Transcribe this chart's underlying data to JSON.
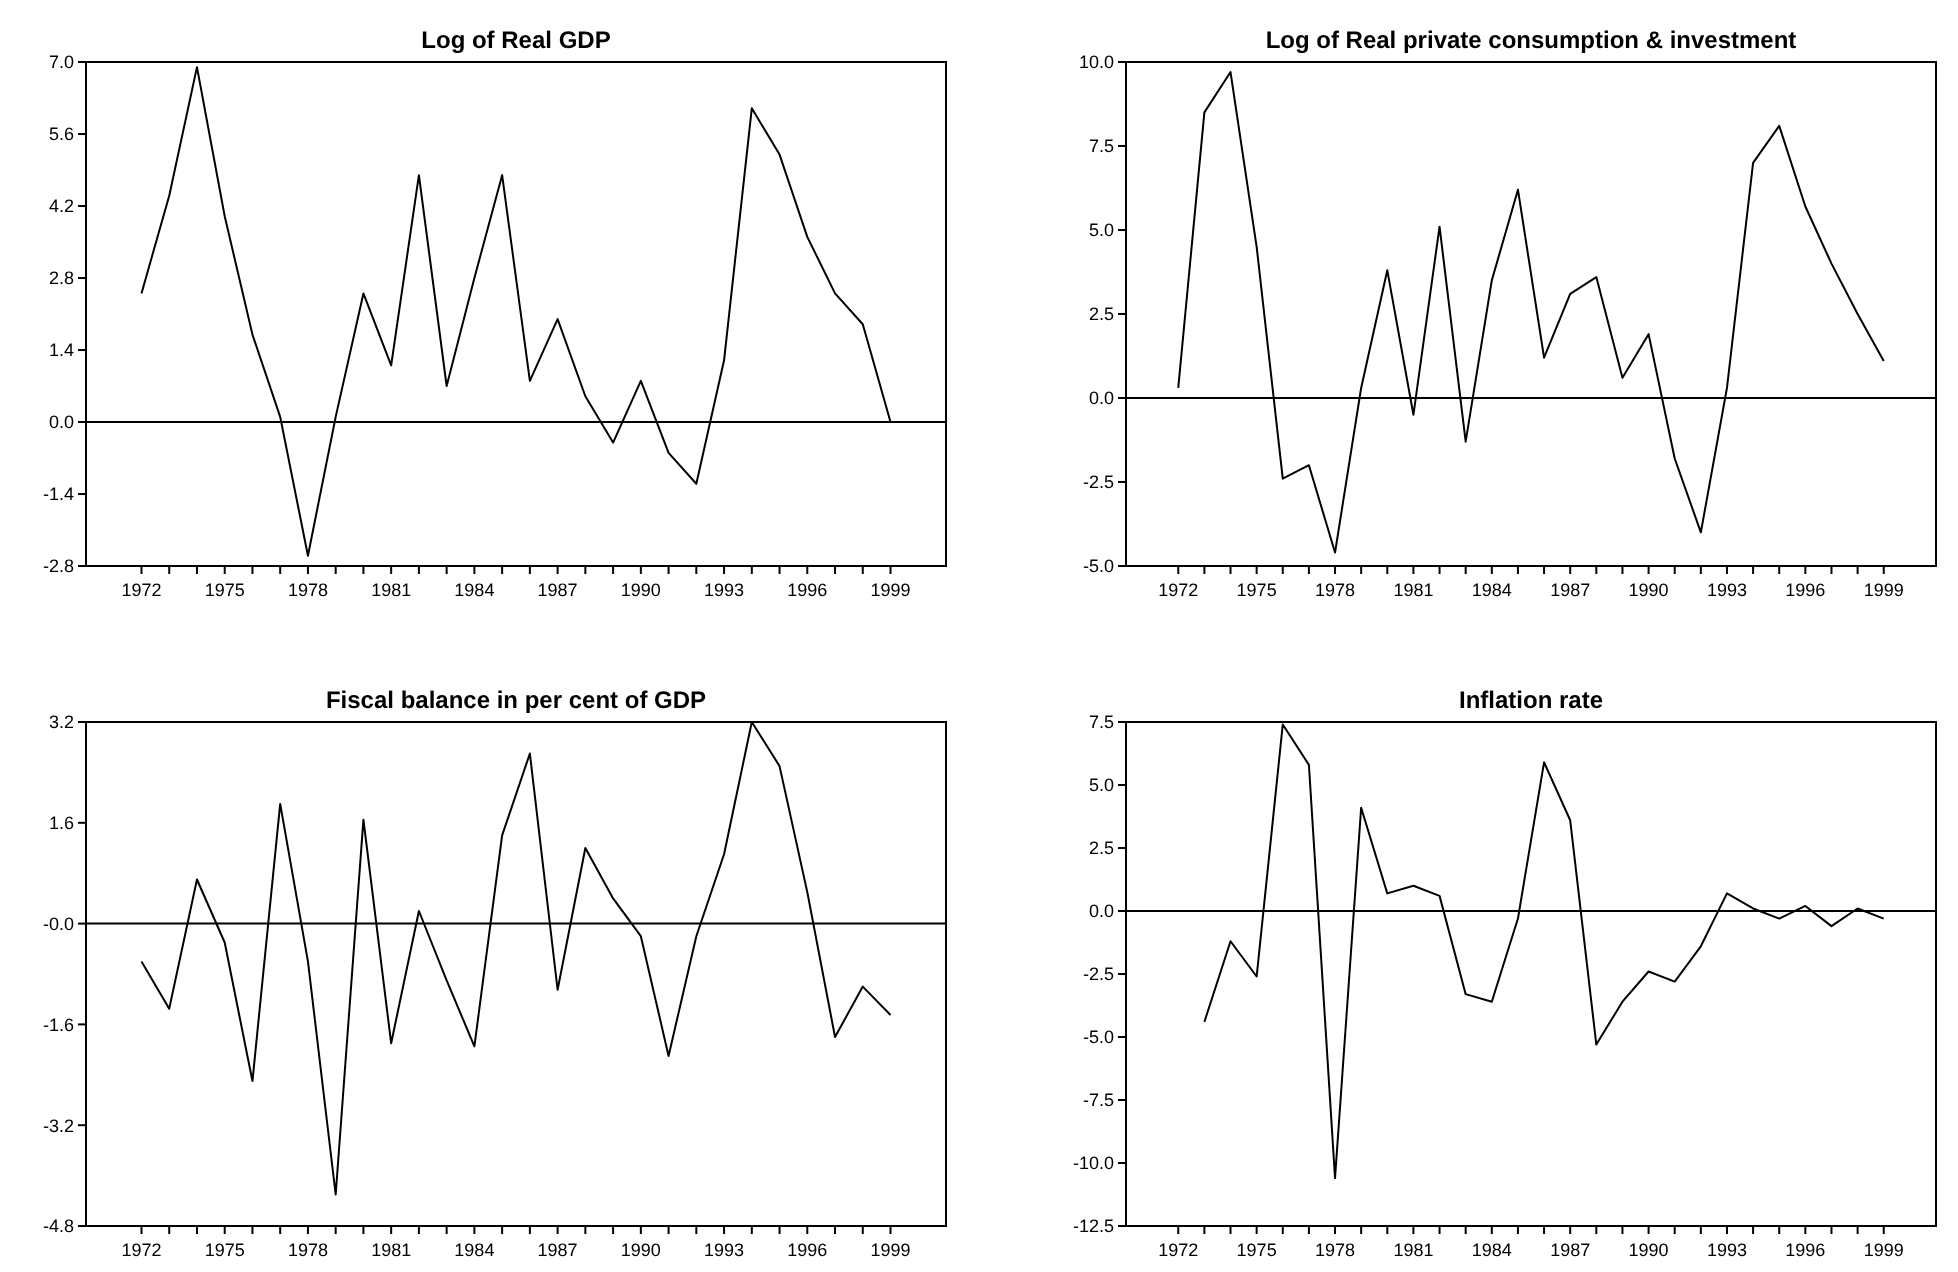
{
  "chart_data": [
    {
      "type": "line",
      "title": "Log of Real GDP",
      "x": [
        1972,
        1973,
        1974,
        1975,
        1976,
        1977,
        1978,
        1979,
        1980,
        1981,
        1982,
        1983,
        1984,
        1985,
        1986,
        1987,
        1988,
        1989,
        1990,
        1991,
        1992,
        1993,
        1994,
        1995,
        1996,
        1997,
        1998,
        1999
      ],
      "values": [
        2.5,
        4.4,
        6.9,
        4.0,
        1.7,
        0.1,
        -2.6,
        0.1,
        2.5,
        1.1,
        4.8,
        0.7,
        2.8,
        4.8,
        0.8,
        2.0,
        0.5,
        -0.4,
        0.8,
        -0.6,
        -1.2,
        1.2,
        6.1,
        5.2,
        3.6,
        2.5,
        1.9,
        0.0
      ],
      "color": "#000000",
      "xlim": [
        1970,
        2001
      ],
      "xticks": [
        {
          "value": 1972,
          "label": "1972"
        },
        {
          "value": 1973,
          "label": null
        },
        {
          "value": 1974,
          "label": null
        },
        {
          "value": 1975,
          "label": "1975"
        },
        {
          "value": 1976,
          "label": null
        },
        {
          "value": 1977,
          "label": null
        },
        {
          "value": 1978,
          "label": "1978"
        },
        {
          "value": 1979,
          "label": null
        },
        {
          "value": 1980,
          "label": null
        },
        {
          "value": 1981,
          "label": "1981"
        },
        {
          "value": 1982,
          "label": null
        },
        {
          "value": 1983,
          "label": null
        },
        {
          "value": 1984,
          "label": "1984"
        },
        {
          "value": 1985,
          "label": null
        },
        {
          "value": 1986,
          "label": null
        },
        {
          "value": 1987,
          "label": "1987"
        },
        {
          "value": 1988,
          "label": null
        },
        {
          "value": 1989,
          "label": null
        },
        {
          "value": 1990,
          "label": "1990"
        },
        {
          "value": 1991,
          "label": null
        },
        {
          "value": 1992,
          "label": null
        },
        {
          "value": 1993,
          "label": "1993"
        },
        {
          "value": 1994,
          "label": null
        },
        {
          "value": 1995,
          "label": null
        },
        {
          "value": 1996,
          "label": "1996"
        },
        {
          "value": 1997,
          "label": null
        },
        {
          "value": 1998,
          "label": null
        },
        {
          "value": 1999,
          "label": "1999"
        }
      ],
      "ylim": [
        -2.8,
        7.0
      ],
      "yticks": [
        {
          "value": -2.8,
          "label": "-2.8"
        },
        {
          "value": -1.4,
          "label": "-1.4"
        },
        {
          "value": 0,
          "label": "0.0"
        },
        {
          "value": 1.4,
          "label": "1.4"
        },
        {
          "value": 2.8,
          "label": "2.8"
        },
        {
          "value": 4.2,
          "label": "4.2"
        },
        {
          "value": 5.6,
          "label": "5.6"
        },
        {
          "value": 7.0,
          "label": "7.0"
        }
      ],
      "ref_lines": [
        {
          "axis": "y",
          "value": 0,
          "color": "#000000"
        }
      ]
    },
    {
      "type": "line",
      "title": "Log of Real private consumption & investment",
      "x": [
        1972,
        1973,
        1974,
        1975,
        1976,
        1977,
        1978,
        1979,
        1980,
        1981,
        1982,
        1983,
        1984,
        1985,
        1986,
        1987,
        1988,
        1989,
        1990,
        1991,
        1992,
        1993,
        1994,
        1995,
        1996,
        1997,
        1998,
        1999
      ],
      "values": [
        0.3,
        8.5,
        9.7,
        4.5,
        -2.4,
        -2.0,
        -4.6,
        0.3,
        3.8,
        -0.5,
        5.1,
        -1.3,
        3.5,
        6.2,
        1.2,
        3.1,
        3.6,
        0.6,
        1.9,
        -1.8,
        -4.0,
        0.3,
        7.0,
        8.1,
        5.7,
        4.0,
        2.5,
        1.1
      ],
      "color": "#000000",
      "xlim": [
        1970,
        2001
      ],
      "xticks": [
        {
          "value": 1972,
          "label": "1972"
        },
        {
          "value": 1973,
          "label": null
        },
        {
          "value": 1974,
          "label": null
        },
        {
          "value": 1975,
          "label": "1975"
        },
        {
          "value": 1976,
          "label": null
        },
        {
          "value": 1977,
          "label": null
        },
        {
          "value": 1978,
          "label": "1978"
        },
        {
          "value": 1979,
          "label": null
        },
        {
          "value": 1980,
          "label": null
        },
        {
          "value": 1981,
          "label": "1981"
        },
        {
          "value": 1982,
          "label": null
        },
        {
          "value": 1983,
          "label": null
        },
        {
          "value": 1984,
          "label": "1984"
        },
        {
          "value": 1985,
          "label": null
        },
        {
          "value": 1986,
          "label": null
        },
        {
          "value": 1987,
          "label": "1987"
        },
        {
          "value": 1988,
          "label": null
        },
        {
          "value": 1989,
          "label": null
        },
        {
          "value": 1990,
          "label": "1990"
        },
        {
          "value": 1991,
          "label": null
        },
        {
          "value": 1992,
          "label": null
        },
        {
          "value": 1993,
          "label": "1993"
        },
        {
          "value": 1994,
          "label": null
        },
        {
          "value": 1995,
          "label": null
        },
        {
          "value": 1996,
          "label": "1996"
        },
        {
          "value": 1997,
          "label": null
        },
        {
          "value": 1998,
          "label": null
        },
        {
          "value": 1999,
          "label": "1999"
        }
      ],
      "ylim": [
        -5.0,
        10.0
      ],
      "yticks": [
        {
          "value": -5,
          "label": "-5.0"
        },
        {
          "value": -2.5,
          "label": "-2.5"
        },
        {
          "value": 0,
          "label": "0.0"
        },
        {
          "value": 2.5,
          "label": "2.5"
        },
        {
          "value": 5,
          "label": "5.0"
        },
        {
          "value": 7.5,
          "label": "7.5"
        },
        {
          "value": 10,
          "label": "10.0"
        }
      ],
      "ref_lines": [
        {
          "axis": "y",
          "value": 0,
          "color": "#000000"
        }
      ]
    },
    {
      "type": "line",
      "title": "Fiscal balance in per cent of GDP",
      "x": [
        1972,
        1973,
        1974,
        1975,
        1976,
        1977,
        1978,
        1979,
        1980,
        1981,
        1982,
        1983,
        1984,
        1985,
        1986,
        1987,
        1988,
        1989,
        1990,
        1991,
        1992,
        1993,
        1994,
        1995,
        1996,
        1997,
        1998,
        1999
      ],
      "values": [
        -0.6,
        -1.35,
        0.7,
        -0.3,
        -2.5,
        1.9,
        -0.6,
        -4.3,
        1.65,
        -1.9,
        0.2,
        -0.9,
        -1.95,
        1.4,
        2.7,
        -1.05,
        1.2,
        0.4,
        -0.2,
        -2.1,
        -0.2,
        1.1,
        3.2,
        2.5,
        0.5,
        -1.8,
        -1.0,
        -1.45
      ],
      "color": "#000000",
      "xlim": [
        1970,
        2001
      ],
      "xticks": [
        {
          "value": 1972,
          "label": "1972"
        },
        {
          "value": 1973,
          "label": null
        },
        {
          "value": 1974,
          "label": null
        },
        {
          "value": 1975,
          "label": "1975"
        },
        {
          "value": 1976,
          "label": null
        },
        {
          "value": 1977,
          "label": null
        },
        {
          "value": 1978,
          "label": "1978"
        },
        {
          "value": 1979,
          "label": null
        },
        {
          "value": 1980,
          "label": null
        },
        {
          "value": 1981,
          "label": "1981"
        },
        {
          "value": 1982,
          "label": null
        },
        {
          "value": 1983,
          "label": null
        },
        {
          "value": 1984,
          "label": "1984"
        },
        {
          "value": 1985,
          "label": null
        },
        {
          "value": 1986,
          "label": null
        },
        {
          "value": 1987,
          "label": "1987"
        },
        {
          "value": 1988,
          "label": null
        },
        {
          "value": 1989,
          "label": null
        },
        {
          "value": 1990,
          "label": "1990"
        },
        {
          "value": 1991,
          "label": null
        },
        {
          "value": 1992,
          "label": null
        },
        {
          "value": 1993,
          "label": "1993"
        },
        {
          "value": 1994,
          "label": null
        },
        {
          "value": 1995,
          "label": null
        },
        {
          "value": 1996,
          "label": "1996"
        },
        {
          "value": 1997,
          "label": null
        },
        {
          "value": 1998,
          "label": null
        },
        {
          "value": 1999,
          "label": "1999"
        }
      ],
      "ylim": [
        -4.8,
        3.2
      ],
      "yticks": [
        {
          "value": -4.8,
          "label": "-4.8"
        },
        {
          "value": -3.2,
          "label": "-3.2"
        },
        {
          "value": -1.6,
          "label": "-1.6"
        },
        {
          "value": 0,
          "label": "-0.0"
        },
        {
          "value": 1.6,
          "label": "1.6"
        },
        {
          "value": 3.2,
          "label": "3.2"
        }
      ],
      "ref_lines": [
        {
          "axis": "y",
          "value": 0,
          "color": "#000000"
        }
      ]
    },
    {
      "type": "line",
      "title": "Inflation rate",
      "x": [
        1973,
        1974,
        1975,
        1976,
        1977,
        1978,
        1979,
        1980,
        1981,
        1982,
        1983,
        1984,
        1985,
        1986,
        1987,
        1988,
        1989,
        1990,
        1991,
        1992,
        1993,
        1994,
        1995,
        1996,
        1997,
        1998,
        1999
      ],
      "values": [
        -4.4,
        -1.2,
        -2.6,
        7.4,
        5.8,
        -10.6,
        4.1,
        0.7,
        1.0,
        0.6,
        -3.3,
        -3.6,
        -0.3,
        5.9,
        3.6,
        -5.3,
        -3.6,
        -2.4,
        -2.8,
        -1.4,
        0.7,
        0.1,
        -0.3,
        0.2,
        -0.6,
        0.1,
        -0.3
      ],
      "color": "#000000",
      "xlim": [
        1970,
        2001
      ],
      "xticks": [
        {
          "value": 1972,
          "label": "1972"
        },
        {
          "value": 1973,
          "label": null
        },
        {
          "value": 1974,
          "label": null
        },
        {
          "value": 1975,
          "label": "1975"
        },
        {
          "value": 1976,
          "label": null
        },
        {
          "value": 1977,
          "label": null
        },
        {
          "value": 1978,
          "label": "1978"
        },
        {
          "value": 1979,
          "label": null
        },
        {
          "value": 1980,
          "label": null
        },
        {
          "value": 1981,
          "label": "1981"
        },
        {
          "value": 1982,
          "label": null
        },
        {
          "value": 1983,
          "label": null
        },
        {
          "value": 1984,
          "label": "1984"
        },
        {
          "value": 1985,
          "label": null
        },
        {
          "value": 1986,
          "label": null
        },
        {
          "value": 1987,
          "label": "1987"
        },
        {
          "value": 1988,
          "label": null
        },
        {
          "value": 1989,
          "label": null
        },
        {
          "value": 1990,
          "label": "1990"
        },
        {
          "value": 1991,
          "label": null
        },
        {
          "value": 1992,
          "label": null
        },
        {
          "value": 1993,
          "label": "1993"
        },
        {
          "value": 1994,
          "label": null
        },
        {
          "value": 1995,
          "label": null
        },
        {
          "value": 1996,
          "label": "1996"
        },
        {
          "value": 1997,
          "label": null
        },
        {
          "value": 1998,
          "label": null
        },
        {
          "value": 1999,
          "label": "1999"
        }
      ],
      "ylim": [
        -12.5,
        7.5
      ],
      "yticks": [
        {
          "value": -12.5,
          "label": "-12.5"
        },
        {
          "value": -10,
          "label": "-10.0"
        },
        {
          "value": -7.5,
          "label": "-7.5"
        },
        {
          "value": -5,
          "label": "-5.0"
        },
        {
          "value": -2.5,
          "label": "-2.5"
        },
        {
          "value": 0,
          "label": "0.0"
        },
        {
          "value": 2.5,
          "label": "2.5"
        },
        {
          "value": 5,
          "label": "5.0"
        },
        {
          "value": 7.5,
          "label": "7.5"
        }
      ],
      "ref_lines": [
        {
          "axis": "y",
          "value": 0,
          "color": "#000000"
        }
      ]
    }
  ]
}
